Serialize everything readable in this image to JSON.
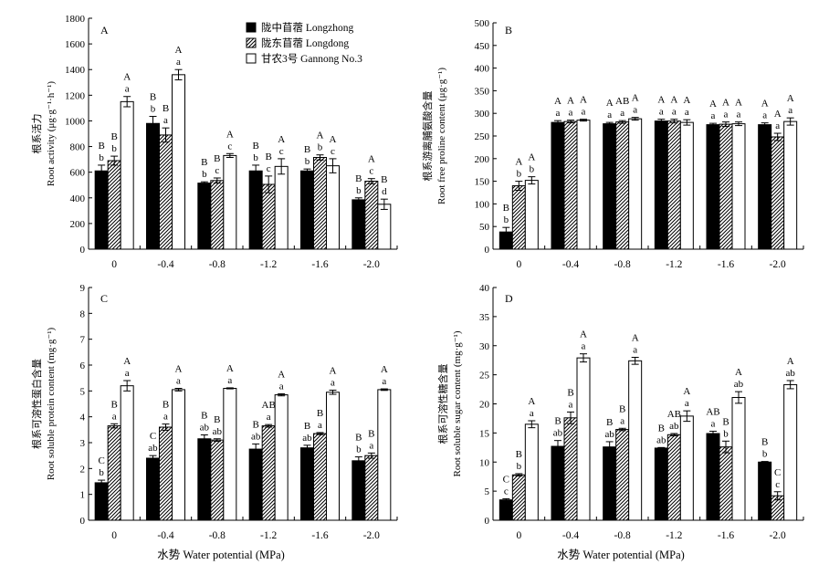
{
  "legend": [
    {
      "name": "陇中苜蓿 Longzhong",
      "pattern": "solid"
    },
    {
      "name": "陇东苜蓿 Longdong",
      "pattern": "hatch"
    },
    {
      "name": "甘农3号 Gannong No.3",
      "pattern": "white"
    }
  ],
  "xlabel_left": "水势 Water potential (MPa)",
  "xlabel_right": "水势 Water potential (MPa)",
  "chart_data": [
    {
      "type": "bar",
      "panel": "A",
      "ylabel_cn": "根系活力",
      "ylabel_en": "Root activity (μg·g⁻¹·h⁻¹)",
      "categories": [
        "0",
        "-0.4",
        "-0.8",
        "-1.2",
        "-1.6",
        "-2.0"
      ],
      "ylim": [
        0,
        1800
      ],
      "ytick_step": 200,
      "series": [
        {
          "name": "陇中苜蓿 Longzhong",
          "values": [
            610,
            980,
            515,
            610,
            610,
            385
          ],
          "errors": [
            45,
            55,
            10,
            45,
            15,
            15
          ],
          "upper": [
            "B",
            "B",
            "B",
            "B",
            "B",
            "B"
          ],
          "lower": [
            "b",
            "b",
            "b",
            "b",
            "b",
            "b"
          ]
        },
        {
          "name": "陇东苜蓿 Longdong",
          "values": [
            690,
            890,
            535,
            505,
            715,
            530
          ],
          "errors": [
            35,
            55,
            20,
            65,
            20,
            20
          ],
          "upper": [
            "B",
            "B",
            "B",
            "B",
            "A",
            "A"
          ],
          "lower": [
            "b",
            "a",
            "c",
            "c",
            "b",
            "c"
          ]
        },
        {
          "name": "甘农3号 Gannong No.3",
          "values": [
            1150,
            1360,
            730,
            645,
            650,
            350
          ],
          "errors": [
            40,
            40,
            15,
            60,
            55,
            40
          ],
          "upper": [
            "A",
            "A",
            "A",
            "A",
            "A",
            "B"
          ],
          "lower": [
            "a",
            "a",
            "c",
            "c",
            "c",
            "d"
          ]
        }
      ]
    },
    {
      "type": "bar",
      "panel": "B",
      "ylabel_cn": "根系游离脯氨酸含量",
      "ylabel_en": "Root free proline content (μg·g⁻¹)",
      "categories": [
        "0",
        "-0.4",
        "-0.8",
        "-1.2",
        "-1.6",
        "-2.0"
      ],
      "ylim": [
        0,
        500
      ],
      "ytick_step": 50,
      "series": [
        {
          "name": "陇中苜蓿 Longzhong",
          "values": [
            38,
            280,
            277,
            283,
            275,
            275
          ],
          "errors": [
            10,
            4,
            3,
            4,
            3,
            4
          ],
          "upper": [
            "B",
            "A",
            "A",
            "A",
            "A",
            "A"
          ],
          "lower": [
            "b",
            "a",
            "a",
            "a",
            "a",
            "a"
          ]
        },
        {
          "name": "陇东苜蓿 Longdong",
          "values": [
            140,
            282,
            281,
            283,
            276,
            248
          ],
          "errors": [
            10,
            3,
            3,
            4,
            5,
            8
          ],
          "upper": [
            "A",
            "A",
            "AB",
            "A",
            "A",
            "A"
          ],
          "lower": [
            "b",
            "a",
            "a",
            "a",
            "a",
            "a"
          ]
        },
        {
          "name": "甘农3号 Gannong No.3",
          "values": [
            152,
            285,
            288,
            280,
            277,
            282
          ],
          "errors": [
            8,
            2,
            3,
            6,
            4,
            8
          ],
          "upper": [
            "A",
            "A",
            "A",
            "A",
            "A",
            "A"
          ],
          "lower": [
            "b",
            "a",
            "a",
            "a",
            "a",
            "a"
          ]
        }
      ]
    },
    {
      "type": "bar",
      "panel": "C",
      "ylabel_cn": "根系可溶性蛋白含量",
      "ylabel_en": "Root soluble protein content (mg·g⁻¹)",
      "categories": [
        "0",
        "-0.4",
        "-0.8",
        "-1.2",
        "-1.6",
        "-2.0"
      ],
      "ylim": [
        0,
        9
      ],
      "ytick_step": 1,
      "series": [
        {
          "name": "陇中苜蓿 Longzhong",
          "values": [
            1.45,
            2.4,
            3.15,
            2.75,
            2.8,
            2.3
          ],
          "errors": [
            0.1,
            0.1,
            0.15,
            0.2,
            0.1,
            0.15
          ],
          "upper": [
            "C",
            "C",
            "B",
            "B",
            "B",
            "B"
          ],
          "lower": [
            "b",
            "ab",
            "ab",
            "ab",
            "ab",
            "b"
          ]
        },
        {
          "name": "陇东苜蓿 Longdong",
          "values": [
            3.65,
            3.6,
            3.1,
            3.65,
            3.35,
            2.5
          ],
          "errors": [
            0.08,
            0.12,
            0.05,
            0.05,
            0.04,
            0.1
          ],
          "upper": [
            "B",
            "B",
            "B",
            "AB",
            "B",
            "B"
          ],
          "lower": [
            "a",
            "a",
            "ab",
            "a",
            "a",
            "a"
          ]
        },
        {
          "name": "甘农3号 Gannong No.3",
          "values": [
            5.2,
            5.05,
            5.1,
            4.85,
            4.95,
            5.05
          ],
          "errors": [
            0.2,
            0.05,
            0.02,
            0.04,
            0.08,
            0.03
          ],
          "upper": [
            "A",
            "A",
            "A",
            "A",
            "A",
            "A"
          ],
          "lower": [
            "a",
            "a",
            "a",
            "a",
            "a",
            "a"
          ]
        }
      ]
    },
    {
      "type": "bar",
      "panel": "D",
      "ylabel_cn": "根系可溶性糖含量",
      "ylabel_en": "Root soluble sugar content (mg·g⁻¹)",
      "categories": [
        "0",
        "-0.4",
        "-0.8",
        "-1.2",
        "-1.6",
        "-2.0"
      ],
      "ylim": [
        0,
        40
      ],
      "ytick_step": 5,
      "series": [
        {
          "name": "陇中苜蓿 Longzhong",
          "values": [
            3.5,
            12.7,
            12.6,
            12.4,
            14.9,
            10.0
          ],
          "errors": [
            0.2,
            1.0,
            0.9,
            0.1,
            0.4,
            0.1
          ],
          "upper": [
            "C",
            "B",
            "B",
            "B",
            "AB",
            "B"
          ],
          "lower": [
            "c",
            "ab",
            "ab",
            "ab",
            "a",
            "b"
          ]
        },
        {
          "name": "陇东苜蓿 Longdong",
          "values": [
            7.8,
            17.6,
            15.6,
            14.7,
            12.6,
            4.2
          ],
          "errors": [
            0.2,
            1.0,
            0.2,
            0.2,
            1.0,
            0.7
          ],
          "upper": [
            "B",
            "B",
            "B",
            "AB",
            "B",
            "C"
          ],
          "lower": [
            "b",
            "a",
            "a",
            "ab",
            "b",
            "c"
          ]
        },
        {
          "name": "甘农3号 Gannong No.3",
          "values": [
            16.5,
            27.9,
            27.4,
            17.9,
            21.1,
            23.3
          ],
          "errors": [
            0.6,
            0.7,
            0.6,
            0.9,
            1.0,
            0.7
          ],
          "upper": [
            "A",
            "A",
            "A",
            "A",
            "A",
            "A"
          ],
          "lower": [
            "a",
            "a",
            "a",
            "a",
            "ab",
            "ab"
          ]
        }
      ]
    }
  ]
}
